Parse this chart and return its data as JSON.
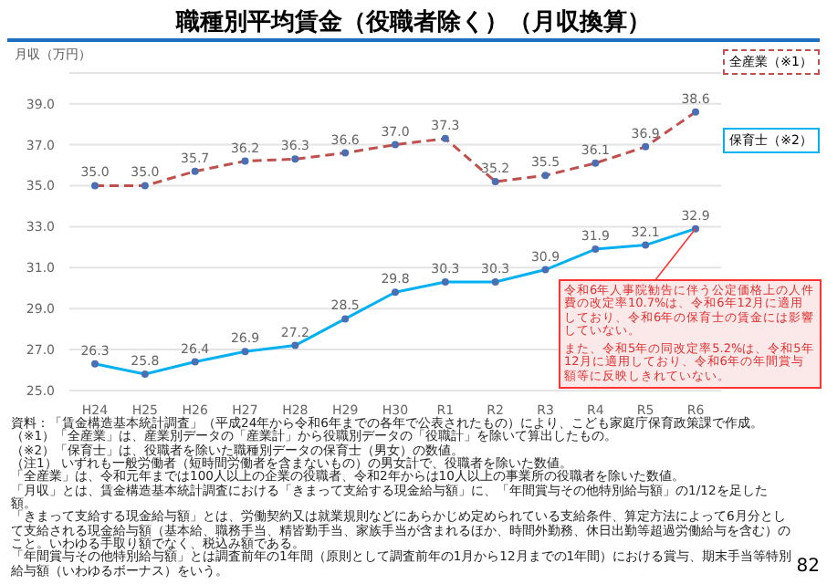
{
  "chart_data": {
    "type": "line",
    "title": "職種別平均賃金（役職者除く）（月収換算）",
    "ylabel": "月収（万円）",
    "categories": [
      "H24",
      "H25",
      "H26",
      "H27",
      "H28",
      "H29",
      "H30",
      "R1",
      "R2",
      "R3",
      "R4",
      "R5",
      "R6"
    ],
    "series": [
      {
        "name": "全産業（※1）",
        "color": "#c0504d",
        "line_style": "dashed",
        "values": [
          35.0,
          35.0,
          35.7,
          36.2,
          36.3,
          36.6,
          37.0,
          37.3,
          35.2,
          35.5,
          36.1,
          36.9,
          38.6
        ],
        "value_labels": [
          "35.0",
          "35.0",
          "35.7",
          "36.2",
          "36.3",
          "36.6",
          "37.0",
          "37.3",
          "35.2",
          "35.5",
          "36.1",
          "36.9",
          "38.6"
        ]
      },
      {
        "name": "保育士（※2）",
        "color": "#00b0f0",
        "line_style": "solid",
        "values": [
          26.3,
          25.8,
          26.4,
          26.9,
          27.2,
          28.5,
          29.8,
          30.3,
          30.3,
          30.9,
          31.9,
          32.1,
          32.9
        ],
        "value_labels": [
          "26.3",
          "25.8",
          "26.4",
          "26.9",
          "27.2",
          "28.5",
          "29.8",
          "30.3",
          "30.3",
          "30.9",
          "31.9",
          "32.1",
          "32.9"
        ]
      }
    ],
    "ylim": [
      25,
      40.5
    ],
    "yticks": [
      {
        "value": 25,
        "label": "25.0"
      },
      {
        "value": 27,
        "label": "27.0"
      },
      {
        "value": 29,
        "label": "29.0"
      },
      {
        "value": 31,
        "label": "31.0"
      },
      {
        "value": 33,
        "label": "33.0"
      },
      {
        "value": 35,
        "label": "35.0"
      },
      {
        "value": 37,
        "label": "37.0"
      },
      {
        "value": 39,
        "label": "39.0"
      }
    ],
    "grid": "y",
    "legend": false,
    "marker": "circle",
    "annotations": [
      {
        "text": "令和6年人事院勧告に伴う公定価格上の人件費の改定率10.7%は、令和6年12月に適用しており、令和6年の保育士の賃金には影響していない。",
        "x": "R6",
        "y": 32.9
      },
      "また、令和5年の同改定率5.2%は、令和5年12月に適用しており、令和6年の年間賞与額等に反映しきれていない。",
      "資料：「賃金構造基本統計調査」（平成24年から令和6年までの各年で公表されたもの）により、こども家庭庁保育政策課で作成。",
      "（※1）「全産業」は、産業別データの「産業計」から役職別データの「役職計」を除いて算出したもの。",
      "（※2）「保育士」は、役職者を除いた職種別データの保育士（男女）の数値。",
      "（注1） いずれも一般労働者（短時間労働者を含まないもの）の男女計で、役職者を除いた数値。",
      "「全産業」は、令和元年までは100人以上の企業の役職者、令和2年からは10人以上の事業所の役職者を除いた数値。",
      "「月収」とは、賃金構造基本統計調査における「きまって支給する現金給与額」に、「年間賞与その他特別給与額」の1/12を足した額。",
      "「きまって支給する現金給与額」とは、労働契約又は就業規則などにあらかじめ定められている支給条件、算定方法によって6月分として支給される現金給与額（基本給、職務手当、精皆勤手当、家族手当が含まれるほか、時間外勤務、休日出勤等超過労働給与を含む）のこと。いわゆる手取り額でなく、税込み額である。",
      "「年間賞与その他特別給与額」とは調査前年の1年間（原則として調査前年の1月から12月までの1年間）における賞与、期末手当等特別給与額（いわゆるボーナス）をいう。",
      "82"
    ]
  }
}
